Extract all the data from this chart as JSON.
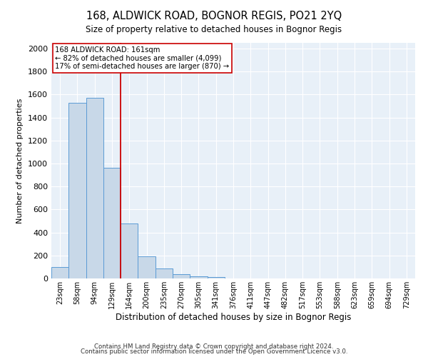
{
  "title": "168, ALDWICK ROAD, BOGNOR REGIS, PO21 2YQ",
  "subtitle": "Size of property relative to detached houses in Bognor Regis",
  "xlabel": "Distribution of detached houses by size in Bognor Regis",
  "ylabel": "Number of detached properties",
  "categories": [
    "23sqm",
    "58sqm",
    "94sqm",
    "129sqm",
    "164sqm",
    "200sqm",
    "235sqm",
    "270sqm",
    "305sqm",
    "341sqm",
    "376sqm",
    "411sqm",
    "447sqm",
    "482sqm",
    "517sqm",
    "553sqm",
    "588sqm",
    "623sqm",
    "659sqm",
    "694sqm",
    "729sqm"
  ],
  "values": [
    100,
    1530,
    1570,
    960,
    480,
    190,
    85,
    35,
    20,
    10,
    0,
    0,
    0,
    0,
    0,
    0,
    0,
    0,
    0,
    0,
    0
  ],
  "bar_color": "#c8d8e8",
  "bar_edge_color": "#5b9bd5",
  "vline_color": "#cc0000",
  "vline_position": 3.5,
  "annotation_text": "168 ALDWICK ROAD: 161sqm\n← 82% of detached houses are smaller (4,099)\n17% of semi-detached houses are larger (870) →",
  "annotation_box_facecolor": "#ffffff",
  "annotation_box_edgecolor": "#cc0000",
  "ylim": [
    0,
    2050
  ],
  "yticks": [
    0,
    200,
    400,
    600,
    800,
    1000,
    1200,
    1400,
    1600,
    1800,
    2000
  ],
  "background_color": "#e8f0f8",
  "footer_line1": "Contains HM Land Registry data © Crown copyright and database right 2024.",
  "footer_line2": "Contains public sector information licensed under the Open Government Licence v3.0."
}
